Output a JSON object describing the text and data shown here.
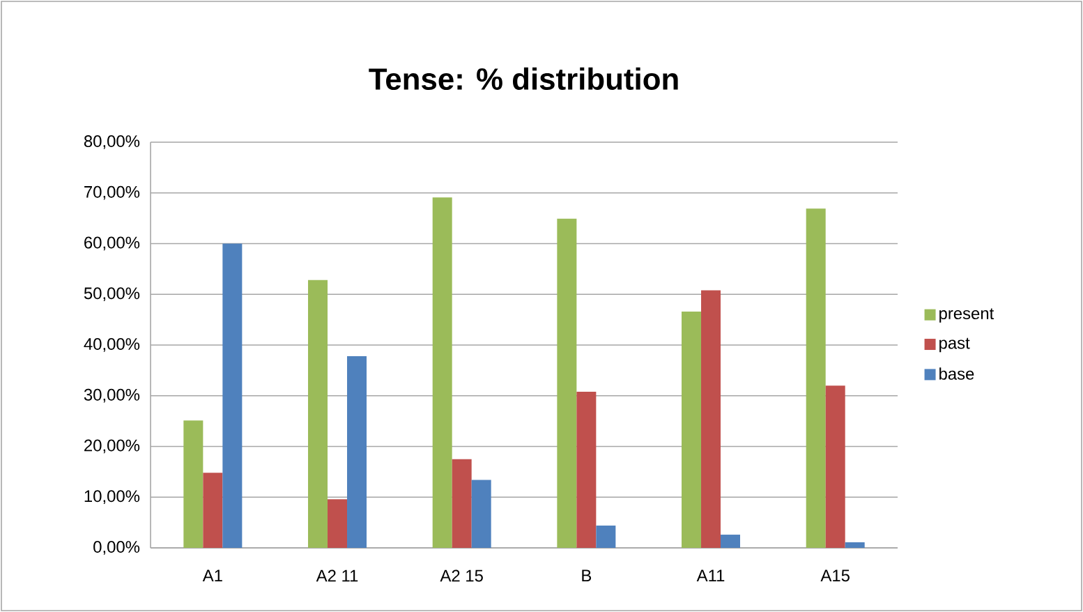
{
  "chart_data": {
    "type": "bar",
    "title": "Tense: % distribution",
    "categories": [
      "A1",
      "A2 11",
      "A2 15",
      "B",
      "A11",
      "A15"
    ],
    "series": [
      {
        "name": "present",
        "color": "#9bbb59",
        "values": [
          25.1,
          52.8,
          69.1,
          64.9,
          46.6,
          66.9
        ]
      },
      {
        "name": "past",
        "color": "#c0504d",
        "values": [
          14.8,
          9.6,
          17.5,
          30.8,
          50.8,
          32.0
        ]
      },
      {
        "name": "base",
        "color": "#4f81bd",
        "values": [
          60.0,
          37.8,
          13.4,
          4.4,
          2.6,
          1.1
        ]
      }
    ],
    "ylim": [
      0,
      80
    ],
    "yticks": [
      {
        "value": 0,
        "label": "0,00%"
      },
      {
        "value": 10,
        "label": "10,00%"
      },
      {
        "value": 20,
        "label": "20,00%"
      },
      {
        "value": 30,
        "label": "30,00%"
      },
      {
        "value": 40,
        "label": "40,00%"
      },
      {
        "value": 50,
        "label": "50,00%"
      },
      {
        "value": 60,
        "label": "60,00%"
      },
      {
        "value": 70,
        "label": "70,00%"
      },
      {
        "value": 80,
        "label": "80,00%"
      }
    ],
    "grid": "y",
    "legend": "right"
  }
}
